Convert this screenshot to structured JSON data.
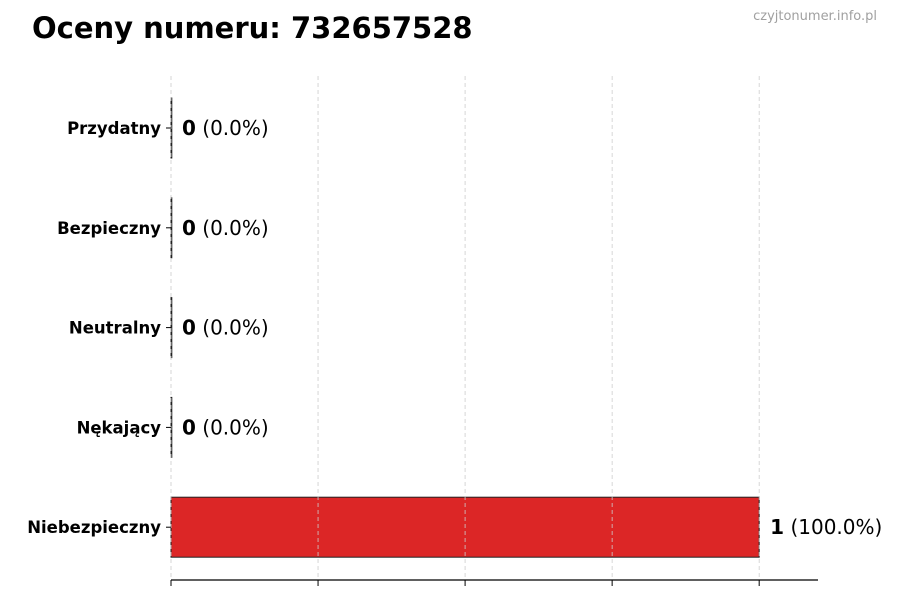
{
  "title": "Oceny numeru: 732657528",
  "watermark": "czyjtonumer.info.pl",
  "chart_data": {
    "type": "bar",
    "orientation": "horizontal",
    "title": "Oceny numeru: 732657528",
    "categories": [
      "Przydatny",
      "Bezpieczny",
      "Neutralny",
      "Nękający",
      "Niebezpieczny"
    ],
    "values": [
      0,
      0,
      0,
      0,
      1
    ],
    "percent_labels": [
      "(0.0%)",
      "(0.0%)",
      "(0.0%)",
      "(0.0%)",
      "(100.0%)"
    ],
    "bar_color": "#dc2626",
    "xlim": [
      0,
      1.1
    ],
    "xticks": [
      0,
      0.25,
      0.5,
      0.75,
      1.0
    ],
    "xtick_labels_shown": false,
    "grid": "x, dashed",
    "xlabel": "",
    "ylabel": ""
  }
}
